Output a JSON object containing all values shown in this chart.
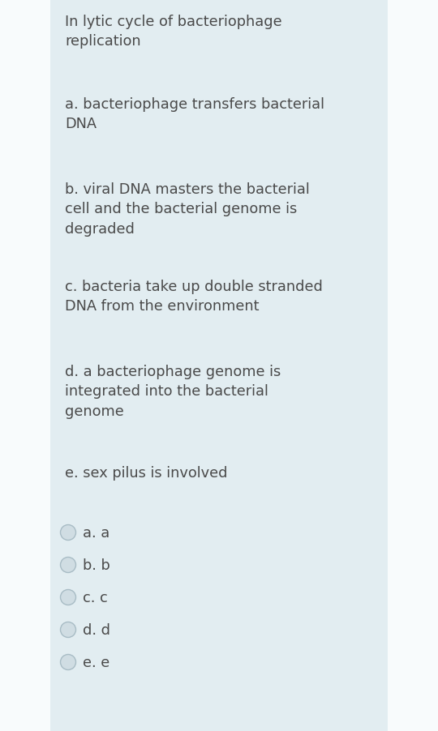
{
  "bg_outer": "#cddbe3",
  "bg_inner": "#e2edf1",
  "border_white": "#f0f4f6",
  "text_color": "#4a4a4a",
  "title": "In lytic cycle of bacteriophage\nreplication",
  "options": [
    "a. bacteriophage transfers bacterial\nDNA",
    "b. viral DNA masters the bacterial\ncell and the bacterial genome is\ndegraded",
    "c. bacteria take up double stranded\nDNA from the environment",
    "d. a bacteriophage genome is\nintegrated into the bacterial\ngenome",
    "e. sex pilus is involved"
  ],
  "answers": [
    "a. a",
    "b. b",
    "c. c",
    "d. d",
    "e. e"
  ],
  "title_fontsize": 12.8,
  "option_fontsize": 12.8,
  "answer_fontsize": 12.8,
  "radio_fill": "#d0dde3",
  "radio_edge": "#a8bcc5",
  "font_family": "DejaVu Sans",
  "fig_width": 5.4,
  "fig_height": 9.03,
  "dpi": 100
}
